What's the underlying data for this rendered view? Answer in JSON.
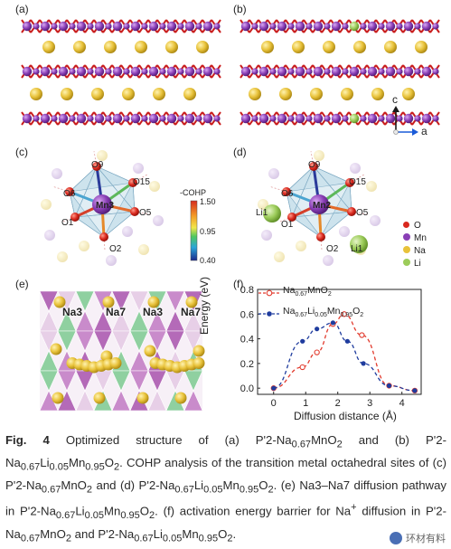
{
  "panels": {
    "a": "(a)",
    "b": "(b)",
    "c": "(c)",
    "d": "(d)",
    "e": "(e)",
    "f": "(f)"
  },
  "axes_indicator": {
    "c": "c",
    "a": "a"
  },
  "panel_c": {
    "center": "Mn3",
    "oxygens": [
      "O9",
      "O15",
      "O6",
      "O5",
      "O1",
      "O2"
    ]
  },
  "panel_d": {
    "center": "Mn2",
    "oxygens": [
      "O9",
      "O15",
      "O6",
      "O5",
      "O1",
      "O2"
    ],
    "li": [
      "Li1",
      "Li1"
    ]
  },
  "cohp_bar": {
    "title": "-COHP",
    "max": "1.50",
    "mid": "0.95",
    "min": "0.40"
  },
  "legend_atoms": [
    {
      "label": "O",
      "color": "#d9281e"
    },
    {
      "label": "Mn",
      "color": "#8a3fb6"
    },
    {
      "label": "Na",
      "color": "#e8c23a"
    },
    {
      "label": "Li",
      "color": "#9ccc5a"
    }
  ],
  "panel_e": {
    "labels": [
      "Na3",
      "Na7",
      "Na3",
      "Na7"
    ]
  },
  "chart_data": {
    "type": "line",
    "xlabel": "Diffusion distance (Å)",
    "ylabel": "Energy (eV)",
    "xlim": [
      -0.5,
      4.6
    ],
    "ylim": [
      -0.05,
      0.8
    ],
    "xticks": [
      "0",
      "1",
      "2",
      "3",
      "4"
    ],
    "yticks": [
      "0.0",
      "0.2",
      "0.4",
      "0.6",
      "0.8"
    ],
    "series": [
      {
        "name": "Na0.67MnO2",
        "name_parts": {
          "a": "Na",
          "sub1": "0.67",
          "b": "MnO",
          "sub2": "2"
        },
        "color": "#e23b2e",
        "marker": "open-circle",
        "x": [
          0.0,
          0.9,
          1.35,
          1.85,
          2.2,
          2.75,
          3.6,
          4.4
        ],
        "y": [
          0.0,
          0.17,
          0.29,
          0.52,
          0.6,
          0.43,
          0.02,
          -0.02
        ]
      },
      {
        "name": "Na0.67Li0.05Mn0.95O2",
        "name_parts": {
          "a": "Na",
          "sub1": "0.67",
          "b": "Li",
          "sub2": "0.05",
          "c": "Mn",
          "sub3": "0.95",
          "d": "O",
          "sub4": "2"
        },
        "color": "#1f3c9e",
        "marker": "filled-circle",
        "x": [
          0.0,
          0.9,
          1.35,
          1.85,
          2.3,
          2.8,
          3.6,
          4.4
        ],
        "y": [
          0.0,
          0.38,
          0.48,
          0.53,
          0.38,
          0.2,
          0.02,
          -0.02
        ]
      }
    ]
  },
  "caption": {
    "fig": "Fig. 4",
    "p1": " Optimized structure of (a) P'2-Na",
    "s1": "0.67",
    "p2": "MnO",
    "s2": "2",
    "p3": " and (b) P'2-Na",
    "s3": "0.67",
    "p4": "Li",
    "s4": "0.05",
    "p5": "Mn",
    "s5": "0.95",
    "p6": "O",
    "s6": "2",
    "p7": ". COHP analysis of the transition metal octahedral sites of (c) P'2-Na",
    "s7": "0.67",
    "p8": "MnO",
    "s8": "2",
    "p9": " and (d) P'2-Na",
    "s9": "0.67",
    "p10": "Li",
    "s10": "0.05",
    "p11": "Mn",
    "s11": "0.95",
    "p12": "O",
    "s12": "2",
    "p13": ". (e) Na3–Na7 diffusion pathway in P'2-Na",
    "s13": "0.67",
    "p14": "Li",
    "s14": "0.05",
    "p15": "Mn",
    "s15": "0.95",
    "p16": "O",
    "s16": "2",
    "p17": ". (f) activation energy barrier for Na",
    "sup1": "+",
    "p18": " diffusion in P'2-Na",
    "s17": "0.67",
    "p19": "MnO",
    "s18": "2",
    "p20": " and P'2-Na",
    "s19": "0.67",
    "p21": "Li",
    "s20": "0.05",
    "p22": "Mn",
    "s21": "0.95",
    "p23": "O",
    "s22": "2",
    "p24": "."
  },
  "watermark": "环材有料"
}
